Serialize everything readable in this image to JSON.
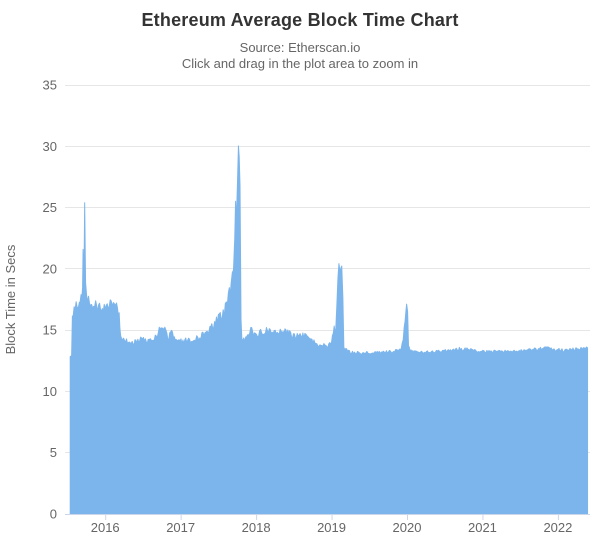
{
  "page": {
    "background": "#ffffff"
  },
  "chart_data": {
    "type": "area",
    "title": "Ethereum Average Block Time Chart",
    "subtitle_source": "Source: Etherscan.io",
    "subtitle_hint": "Click and drag in the plot area to zoom in",
    "ylabel": "Block Time in Secs",
    "xlabel": "",
    "ylim": [
      0,
      35
    ],
    "yticks": [
      0,
      5,
      10,
      15,
      20,
      25,
      30,
      35
    ],
    "xticks": [
      2016,
      2017,
      2018,
      2019,
      2020,
      2021,
      2022
    ],
    "xlim": [
      2015.536,
      2022.393
    ],
    "grid": true,
    "legend": "none",
    "colors": {
      "series": "#7cb5ec",
      "grid": "#e6e6e6",
      "axis_line": "#ccd6eb",
      "label": "#666666",
      "title": "#333333"
    },
    "series": [
      {
        "name": "Ethereum Average Block Time (secs)",
        "unit": "secs",
        "keypoints": [
          [
            2015.536,
            12.8,
            0.05
          ],
          [
            2015.555,
            13.0,
            0.2
          ],
          [
            2015.565,
            16.3,
            0.35
          ],
          [
            2015.6,
            17.0,
            0.45
          ],
          [
            2015.645,
            16.7,
            0.45
          ],
          [
            2015.68,
            17.5,
            0.45
          ],
          [
            2015.7,
            18.2,
            0.35
          ],
          [
            2015.707,
            21.5,
            0.15
          ],
          [
            2015.717,
            18.6,
            0.3
          ],
          [
            2015.728,
            25.4,
            0.08
          ],
          [
            2015.74,
            19.0,
            0.35
          ],
          [
            2015.765,
            17.6,
            0.5
          ],
          [
            2015.82,
            17.1,
            0.5
          ],
          [
            2015.9,
            16.9,
            0.5
          ],
          [
            2016.0,
            17.1,
            0.5
          ],
          [
            2016.08,
            17.0,
            0.45
          ],
          [
            2016.15,
            17.1,
            0.4
          ],
          [
            2016.185,
            16.2,
            0.3
          ],
          [
            2016.205,
            14.4,
            0.25
          ],
          [
            2016.27,
            14.1,
            0.25
          ],
          [
            2016.37,
            14.0,
            0.22
          ],
          [
            2016.47,
            14.2,
            0.25
          ],
          [
            2016.57,
            14.1,
            0.25
          ],
          [
            2016.65,
            14.3,
            0.28
          ],
          [
            2016.73,
            15.1,
            0.35
          ],
          [
            2016.79,
            15.0,
            0.3
          ],
          [
            2016.83,
            14.4,
            0.25
          ],
          [
            2016.88,
            14.7,
            0.3
          ],
          [
            2016.94,
            14.2,
            0.25
          ],
          [
            2017.03,
            14.1,
            0.25
          ],
          [
            2017.13,
            14.2,
            0.25
          ],
          [
            2017.24,
            14.4,
            0.3
          ],
          [
            2017.35,
            14.9,
            0.35
          ],
          [
            2017.45,
            15.5,
            0.45
          ],
          [
            2017.55,
            16.2,
            0.5
          ],
          [
            2017.62,
            17.3,
            0.55
          ],
          [
            2017.67,
            18.8,
            0.5
          ],
          [
            2017.7,
            19.8,
            0.35
          ],
          [
            2017.717,
            22.3,
            0.25
          ],
          [
            2017.728,
            25.5,
            0.15
          ],
          [
            2017.737,
            23.6,
            0.25
          ],
          [
            2017.752,
            26.8,
            0.2
          ],
          [
            2017.766,
            30.0,
            0.06
          ],
          [
            2017.776,
            29.2,
            0.15
          ],
          [
            2017.787,
            26.5,
            0.3
          ],
          [
            2017.8,
            16.0,
            0.3
          ],
          [
            2017.812,
            14.3,
            0.2
          ],
          [
            2017.85,
            14.2,
            0.25
          ],
          [
            2017.9,
            14.7,
            0.3
          ],
          [
            2017.93,
            15.3,
            0.3
          ],
          [
            2017.965,
            14.5,
            0.28
          ],
          [
            2018.02,
            14.7,
            0.28
          ],
          [
            2018.1,
            14.9,
            0.3
          ],
          [
            2018.2,
            15.0,
            0.3
          ],
          [
            2018.32,
            14.9,
            0.3
          ],
          [
            2018.42,
            14.8,
            0.28
          ],
          [
            2018.52,
            14.5,
            0.28
          ],
          [
            2018.62,
            14.6,
            0.28
          ],
          [
            2018.7,
            14.3,
            0.25
          ],
          [
            2018.78,
            13.95,
            0.2
          ],
          [
            2018.86,
            13.75,
            0.18
          ],
          [
            2018.95,
            13.7,
            0.18
          ],
          [
            2019.0,
            13.9,
            0.2
          ],
          [
            2019.035,
            15.3,
            0.25
          ],
          [
            2019.055,
            14.9,
            0.25
          ],
          [
            2019.085,
            19.2,
            0.2
          ],
          [
            2019.098,
            20.5,
            0.1
          ],
          [
            2019.115,
            19.8,
            0.25
          ],
          [
            2019.135,
            20.1,
            0.15
          ],
          [
            2019.15,
            17.5,
            0.3
          ],
          [
            2019.163,
            13.5,
            0.12
          ],
          [
            2019.25,
            13.2,
            0.12
          ],
          [
            2019.4,
            13.15,
            0.12
          ],
          [
            2019.55,
            13.2,
            0.12
          ],
          [
            2019.7,
            13.2,
            0.12
          ],
          [
            2019.85,
            13.3,
            0.13
          ],
          [
            2019.92,
            13.5,
            0.15
          ],
          [
            2019.95,
            14.4,
            0.18
          ],
          [
            2019.975,
            15.9,
            0.15
          ],
          [
            2019.995,
            17.1,
            0.06
          ],
          [
            2020.008,
            16.6,
            0.1
          ],
          [
            2020.02,
            13.7,
            0.12
          ],
          [
            2020.04,
            13.3,
            0.12
          ],
          [
            2020.18,
            13.2,
            0.12
          ],
          [
            2020.35,
            13.25,
            0.12
          ],
          [
            2020.55,
            13.3,
            0.14
          ],
          [
            2020.72,
            13.5,
            0.16
          ],
          [
            2020.82,
            13.4,
            0.14
          ],
          [
            2020.95,
            13.3,
            0.12
          ],
          [
            2021.1,
            13.25,
            0.12
          ],
          [
            2021.3,
            13.3,
            0.12
          ],
          [
            2021.5,
            13.3,
            0.12
          ],
          [
            2021.68,
            13.4,
            0.14
          ],
          [
            2021.82,
            13.55,
            0.16
          ],
          [
            2021.95,
            13.4,
            0.14
          ],
          [
            2022.08,
            13.35,
            0.13
          ],
          [
            2022.2,
            13.45,
            0.14
          ],
          [
            2022.32,
            13.5,
            0.13
          ],
          [
            2022.393,
            13.55,
            0.08
          ]
        ]
      }
    ]
  }
}
